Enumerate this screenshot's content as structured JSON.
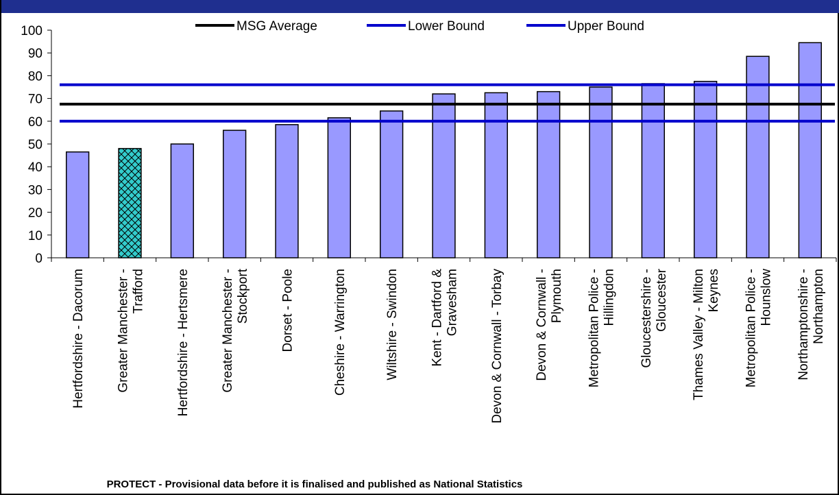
{
  "footer": {
    "note": "PROTECT - Provisional data before it is finalised and published as National Statistics"
  },
  "colors": {
    "header_band": "#1f2f8f",
    "bar_fill": "#9999ff",
    "highlight_fill": "#33cccc",
    "average_line": "#000000",
    "bound_line": "#0000cc"
  },
  "chart_data": {
    "type": "bar",
    "title": "",
    "xlabel": "",
    "ylabel": "",
    "ylim": [
      0,
      100
    ],
    "yticks": [
      0,
      10,
      20,
      30,
      40,
      50,
      60,
      70,
      80,
      90,
      100
    ],
    "grid": false,
    "legend_position": "top",
    "categories": [
      [
        "Hertfordshire - Dacorum"
      ],
      [
        "Greater Manchester -",
        "Trafford"
      ],
      [
        "Hertfordshire - Hertsmere"
      ],
      [
        "Greater Manchester -",
        "Stockport"
      ],
      [
        "Dorset - Poole"
      ],
      [
        "Cheshire - Warrington"
      ],
      [
        "Wiltshire - Swindon"
      ],
      [
        "Kent - Dartford &",
        "Gravesham"
      ],
      [
        "Devon & Cornwall - Torbay"
      ],
      [
        "Devon & Cornwall -",
        "Plymouth"
      ],
      [
        "Metropolitan Police -",
        "Hillingdon"
      ],
      [
        "Gloucestershire -",
        "Gloucester"
      ],
      [
        "Thames Valley - Milton",
        "Keynes"
      ],
      [
        "Metropolitan Police -",
        "Hounslow"
      ],
      [
        "Northamptonshire -",
        "Northampton"
      ]
    ],
    "values": [
      46.5,
      48,
      50,
      56,
      58.5,
      61.5,
      64.5,
      72,
      72.5,
      73,
      75,
      76.5,
      77.5,
      88.5,
      94.5
    ],
    "highlight_index": 1,
    "reference_lines": [
      {
        "name": "MSG Average",
        "value": 67.5,
        "color": "#000000"
      },
      {
        "name": "Lower Bound",
        "value": 60,
        "color": "#0000cc"
      },
      {
        "name": "Upper Bound",
        "value": 76,
        "color": "#0000cc"
      }
    ]
  }
}
